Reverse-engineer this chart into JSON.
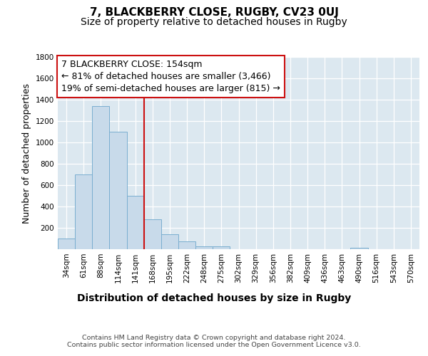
{
  "title": "7, BLACKBERRY CLOSE, RUGBY, CV23 0UJ",
  "subtitle": "Size of property relative to detached houses in Rugby",
  "xlabel": "Distribution of detached houses by size in Rugby",
  "ylabel": "Number of detached properties",
  "bin_labels": [
    "34sqm",
    "61sqm",
    "88sqm",
    "114sqm",
    "141sqm",
    "168sqm",
    "195sqm",
    "222sqm",
    "248sqm",
    "275sqm",
    "302sqm",
    "329sqm",
    "356sqm",
    "382sqm",
    "409sqm",
    "436sqm",
    "463sqm",
    "490sqm",
    "516sqm",
    "543sqm",
    "570sqm"
  ],
  "bar_values": [
    100,
    700,
    1340,
    1100,
    500,
    280,
    140,
    75,
    30,
    30,
    0,
    0,
    0,
    0,
    0,
    0,
    0,
    15,
    0,
    0,
    0
  ],
  "bar_color": "#c8daea",
  "bar_edge_color": "#7aaed0",
  "vline_position": 4.5,
  "vline_color": "#cc1111",
  "annotation_line1": "7 BLACKBERRY CLOSE: 154sqm",
  "annotation_line2": "← 81% of detached houses are smaller (3,466)",
  "annotation_line3": "19% of semi-detached houses are larger (815) →",
  "annotation_box_facecolor": "#ffffff",
  "annotation_box_edgecolor": "#cc1111",
  "ylim_max": 1800,
  "ytick_values": [
    0,
    200,
    400,
    600,
    800,
    1000,
    1200,
    1400,
    1600,
    1800
  ],
  "background_color": "#dce8f0",
  "footer_line1": "Contains HM Land Registry data © Crown copyright and database right 2024.",
  "footer_line2": "Contains public sector information licensed under the Open Government Licence v3.0.",
  "title_fontsize": 11,
  "subtitle_fontsize": 10,
  "annotation_fontsize": 9,
  "tick_fontsize": 7.5,
  "ylabel_fontsize": 9,
  "xlabel_fontsize": 10,
  "footer_fontsize": 6.8
}
